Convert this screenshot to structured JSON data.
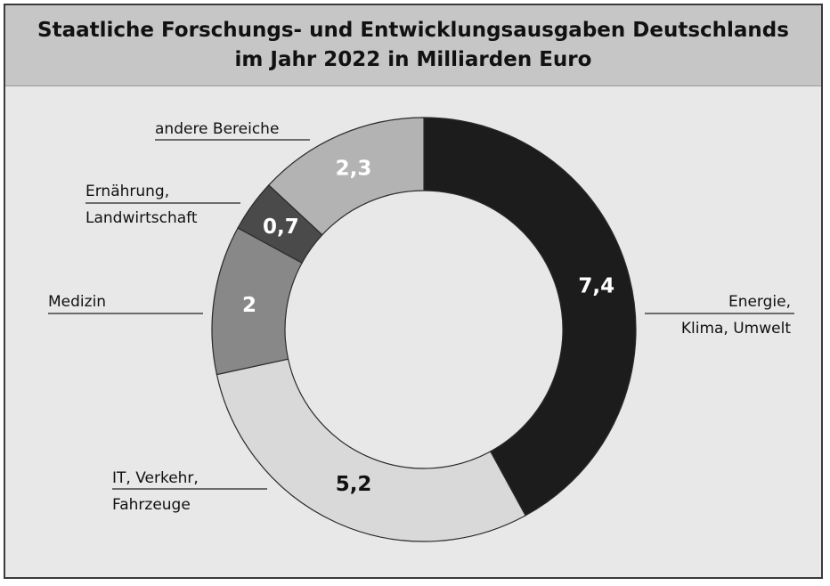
{
  "chart_data": {
    "type": "pie",
    "title": "Staatliche Forschungs- und Entwicklungsausgaben Deutschlands\nim Jahr 2022 in Milliarden Euro",
    "values": [
      7.4,
      5.2,
      2,
      0.7,
      2.3
    ],
    "value_labels": [
      "7,4",
      "5,2",
      "2",
      "0,7",
      "2,3"
    ],
    "categories": [
      [
        "Energie,",
        "Klima, Umwelt"
      ],
      [
        "IT, Verkehr,",
        "Fahrzeuge"
      ],
      [
        "Medizin"
      ],
      [
        "Ernährung,",
        "Landwirtschaft"
      ],
      [
        "andere Bereiche"
      ]
    ],
    "colors": [
      "#1c1c1c",
      "#d9d9d9",
      "#888888",
      "#4a4a4a",
      "#b3b3b3"
    ],
    "value_label_colors": [
      "#ffffff",
      "#111111",
      "#ffffff",
      "#ffffff",
      "#ffffff"
    ],
    "donut": true,
    "legend": "none"
  }
}
